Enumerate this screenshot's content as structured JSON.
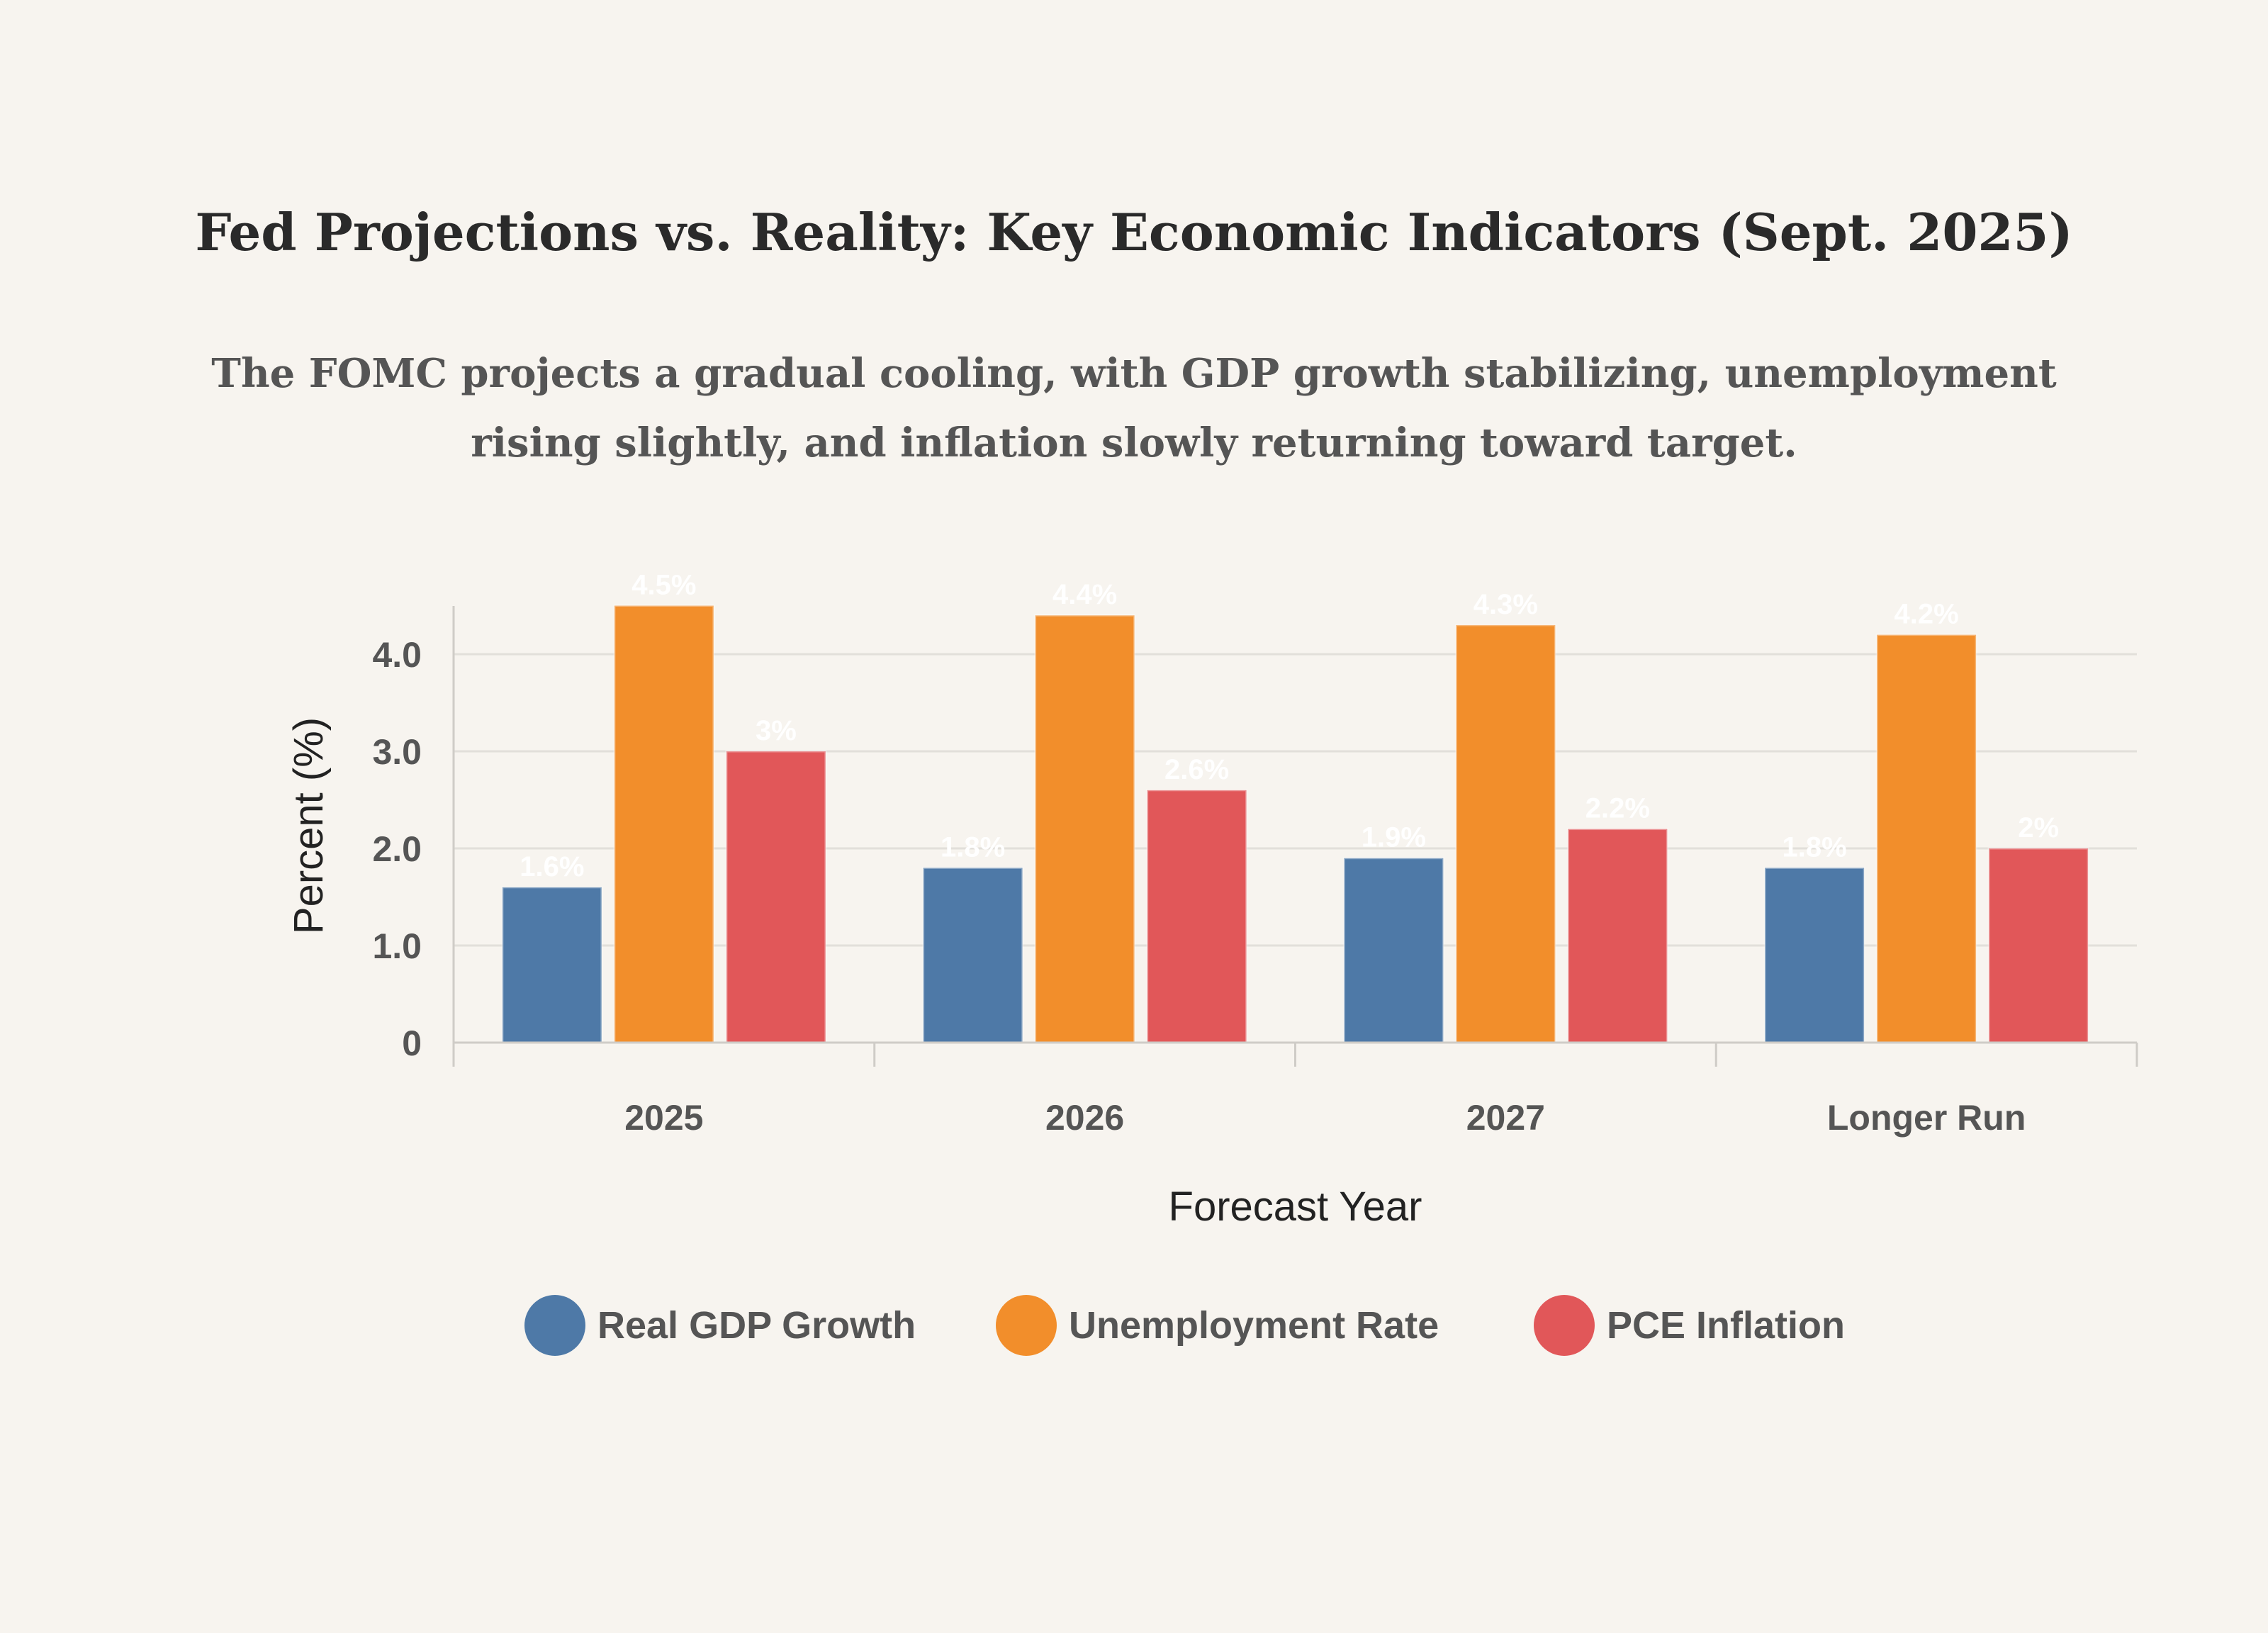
{
  "colors": {
    "background": "#f7f4ef",
    "grid": "#e2dfda",
    "axis": "#cfccc7"
  },
  "chart_data": {
    "type": "bar",
    "title": "Fed Projections vs. Reality: Key Economic Indicators (Sept. 2025)",
    "subtitle": "The FOMC projects a gradual cooling, with GDP growth stabilizing, unemployment rising slightly, and inflation slowly returning toward target.",
    "xlabel": "Forecast Year",
    "ylabel": "Percent (%)",
    "categories": [
      "2025",
      "2026",
      "2027",
      "Longer Run"
    ],
    "ylim": [
      0,
      4.5
    ],
    "yticks": [
      0,
      1.0,
      2.0,
      3.0,
      4.0
    ],
    "ytick_labels": [
      "0",
      "1.0",
      "2.0",
      "3.0",
      "4.0"
    ],
    "grid": true,
    "legend_position": "bottom",
    "series": [
      {
        "name": "Real GDP Growth",
        "color": "#4e79a7",
        "values": [
          1.6,
          1.8,
          1.9,
          1.8
        ],
        "labels": [
          "1.6%",
          "1.8%",
          "1.9%",
          "1.8%"
        ]
      },
      {
        "name": "Unemployment Rate",
        "color": "#f28e2b",
        "values": [
          4.5,
          4.4,
          4.3,
          4.2
        ],
        "labels": [
          "4.5%",
          "4.4%",
          "4.3%",
          "4.2%"
        ]
      },
      {
        "name": "PCE Inflation",
        "color": "#e15759",
        "values": [
          3,
          2.6,
          2.2,
          2
        ],
        "labels": [
          "3%",
          "2.6%",
          "2.2%",
          "2%"
        ]
      }
    ]
  }
}
